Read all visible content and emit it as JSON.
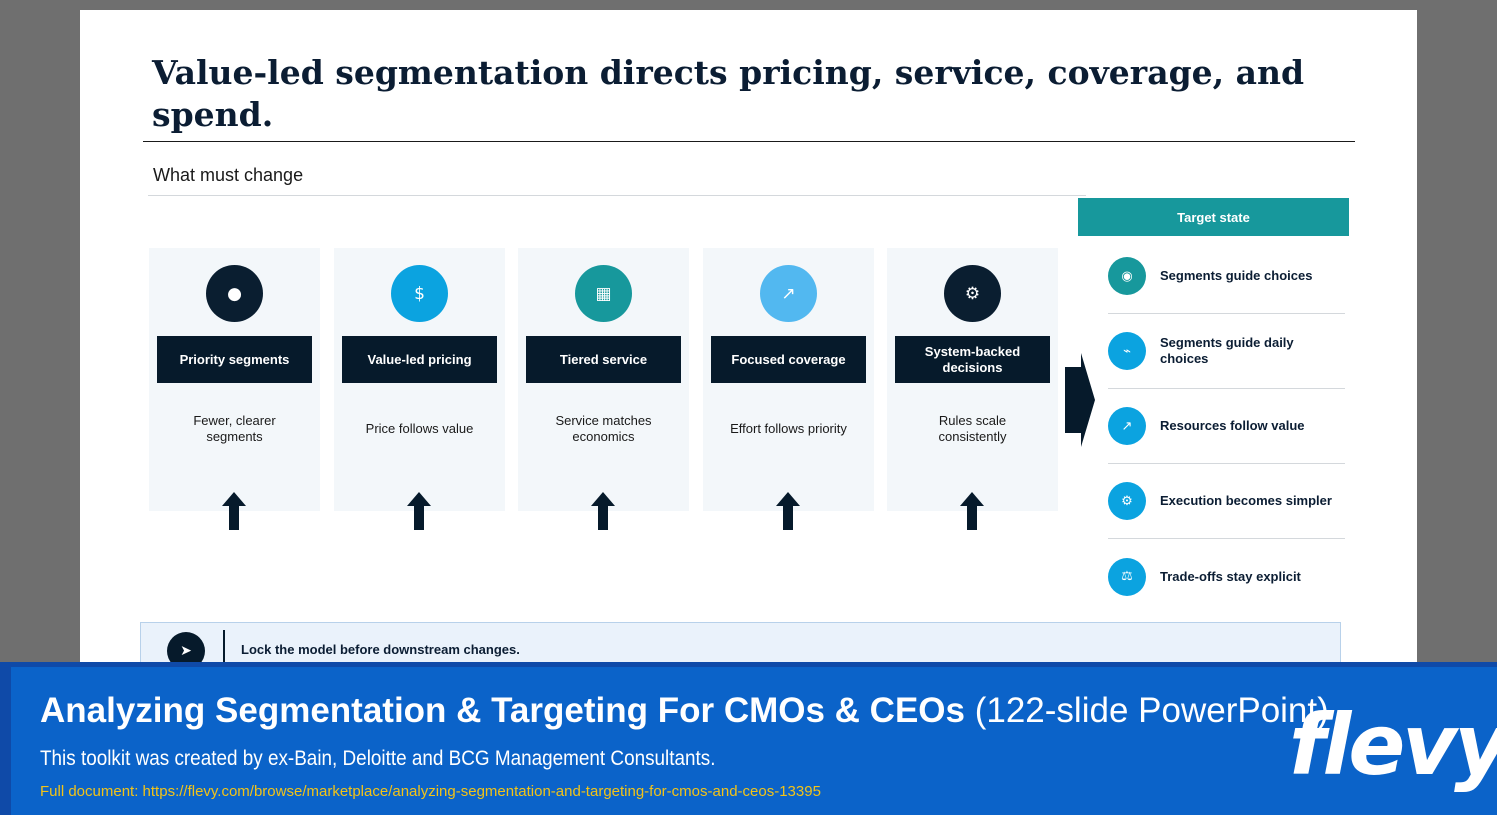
{
  "slide": {
    "title": "Value-led segmentation directs pricing, service, coverage, and spend.",
    "section_label": "What must change"
  },
  "cards": [
    {
      "label": "Priority segments",
      "desc": "Fewer, clearer segments",
      "icon": "dot-icon",
      "glyph": "●",
      "color": "#0a1e30"
    },
    {
      "label": "Value-led pricing",
      "desc": "Price follows value",
      "icon": "dollar-icon",
      "glyph": "$",
      "color": "#0ba3e0"
    },
    {
      "label": "Tiered service",
      "desc": "Service matches economics",
      "icon": "grid-icon",
      "glyph": "▦",
      "color": "#17989c"
    },
    {
      "label": "Focused coverage",
      "desc": "Effort follows priority",
      "icon": "arrow-up-right-icon",
      "glyph": "↗",
      "color": "#52b8f0"
    },
    {
      "label": "System-backed decisions",
      "desc": "Rules scale consistently",
      "icon": "gear-icon",
      "glyph": "⚙",
      "color": "#0a1e30"
    }
  ],
  "target": {
    "header": "Target state",
    "items": [
      {
        "text": "Segments guide choices",
        "icon": "target-icon",
        "glyph": "◉",
        "color": "#17989c"
      },
      {
        "text": "Segments guide daily choices",
        "icon": "route-icon",
        "glyph": "⌁",
        "color": "#0ba3e0"
      },
      {
        "text": "Resources follow value",
        "icon": "arrow-up-right-icon",
        "glyph": "↗",
        "color": "#0ba3e0"
      },
      {
        "text": "Execution becomes simpler",
        "icon": "gear-icon",
        "glyph": "⚙",
        "color": "#0ba3e0"
      },
      {
        "text": "Trade-offs stay explicit",
        "icon": "scales-icon",
        "glyph": "⚖",
        "color": "#0ba3e0"
      }
    ]
  },
  "callout": {
    "text": "Lock the model before downstream changes.",
    "icon": "play-arrow-icon",
    "glyph": "➤"
  },
  "banner": {
    "title_bold": "Analyzing Segmentation & Targeting For CMOs & CEOs",
    "title_light": " (122-slide PowerPoint)",
    "subtitle": "This toolkit was created by ex-Bain, Deloitte and BCG Management Consultants.",
    "link": "Full document: https://flevy.com/browse/marketplace/analyzing-segmentation-and-targeting-for-cmos-and-ceos-13395",
    "logo": "flevy"
  },
  "colors": {
    "navy": "#061a2b",
    "teal": "#17989c",
    "blue": "#0ba3e0",
    "banner_blue": "#0b63c9",
    "link_yellow": "#f2c318"
  }
}
